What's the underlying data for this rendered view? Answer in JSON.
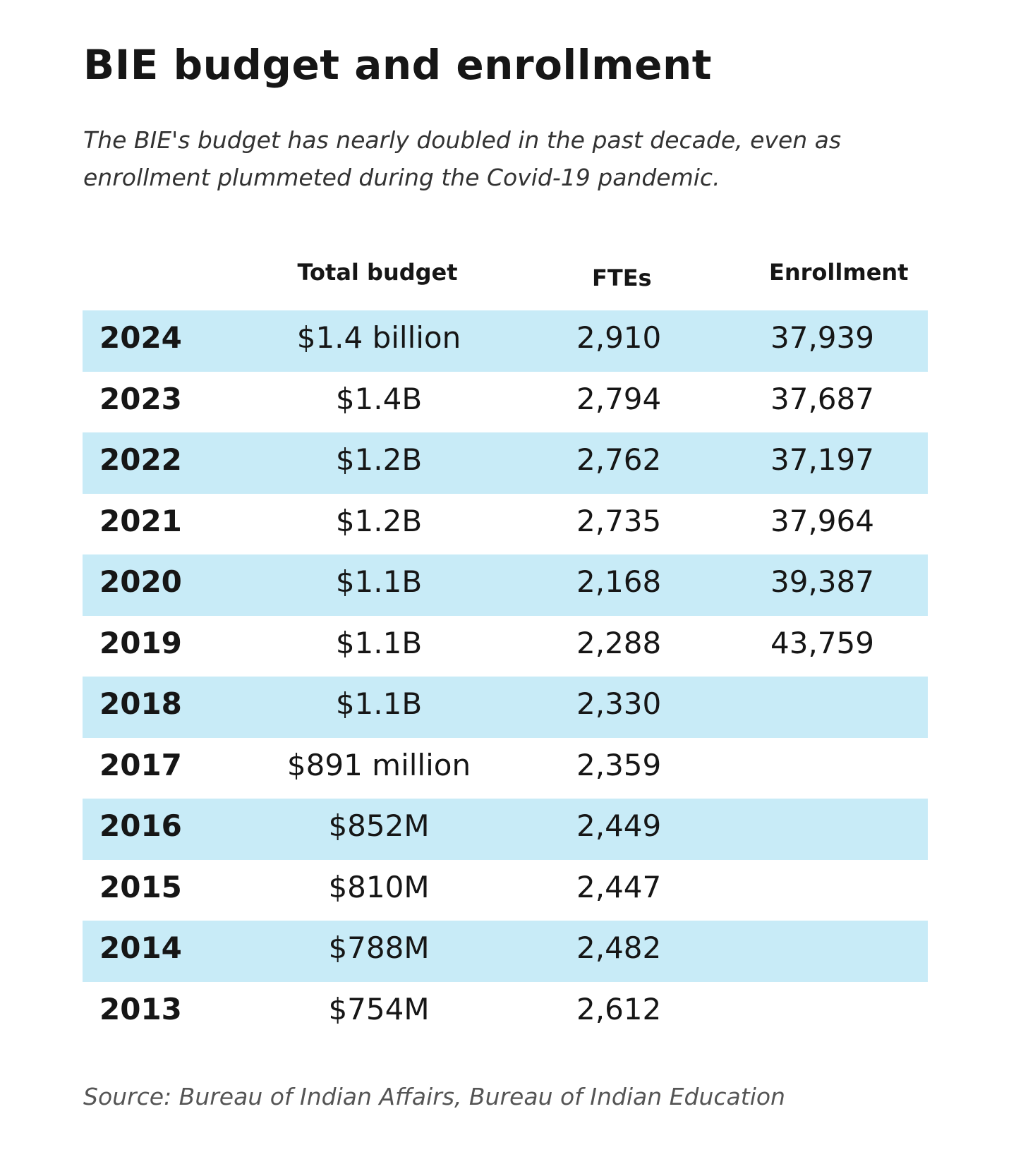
{
  "title": "BIE budget and enrollment",
  "subtitle": "The BIE's budget has nearly doubled in the past decade, even as enrollment plummeted during the Covid-19 pandemic.",
  "table": {
    "headers": {
      "year": "",
      "budget": "Total budget",
      "ftes": "FTEs",
      "enrollment": "Enrollment"
    },
    "stripe_color": "#c8ebf7",
    "rows": [
      {
        "year": "2024",
        "budget": "$1.4 billion",
        "ftes": "2,910",
        "enrollment": "37,939"
      },
      {
        "year": "2023",
        "budget": "$1.4B",
        "ftes": "2,794",
        "enrollment": "37,687"
      },
      {
        "year": "2022",
        "budget": "$1.2B",
        "ftes": "2,762",
        "enrollment": "37,197"
      },
      {
        "year": "2021",
        "budget": "$1.2B",
        "ftes": "2,735",
        "enrollment": "37,964"
      },
      {
        "year": "2020",
        "budget": "$1.1B",
        "ftes": "2,168",
        "enrollment": "39,387"
      },
      {
        "year": "2019",
        "budget": "$1.1B",
        "ftes": "2,288",
        "enrollment": "43,759"
      },
      {
        "year": "2018",
        "budget": "$1.1B",
        "ftes": "2,330",
        "enrollment": ""
      },
      {
        "year": "2017",
        "budget": "$891 million",
        "ftes": "2,359",
        "enrollment": ""
      },
      {
        "year": "2016",
        "budget": "$852M",
        "ftes": "2,449",
        "enrollment": ""
      },
      {
        "year": "2015",
        "budget": "$810M",
        "ftes": "2,447",
        "enrollment": ""
      },
      {
        "year": "2014",
        "budget": "$788M",
        "ftes": "2,482",
        "enrollment": ""
      },
      {
        "year": "2013",
        "budget": "$754M",
        "ftes": "2,612",
        "enrollment": ""
      }
    ]
  },
  "source": "Source: Bureau of Indian Affairs, Bureau of Indian Education"
}
